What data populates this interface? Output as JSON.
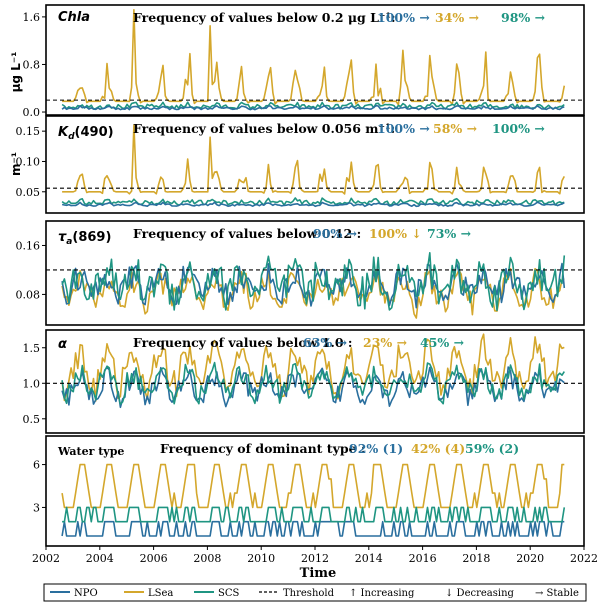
{
  "colors": {
    "NPO": "#2a6f9e",
    "LSea": "#d4a72c",
    "SCS": "#1f9582",
    "threshold": "#000000"
  },
  "figure": {
    "xlabel": "Time",
    "x_ticks": [
      "2002",
      "2004",
      "2006",
      "2008",
      "2010",
      "2012",
      "2014",
      "2016",
      "2018",
      "2020",
      "2022"
    ]
  },
  "legend": [
    {
      "key": "npo",
      "label": "NPO",
      "kind": "line",
      "color": "#2a6f9e"
    },
    {
      "key": "lsea",
      "label": "LSea",
      "kind": "line",
      "color": "#d4a72c"
    },
    {
      "key": "scs",
      "label": "SCS",
      "kind": "line",
      "color": "#1f9582"
    },
    {
      "key": "threshold",
      "label": "Threshold",
      "kind": "dash",
      "color": "#000000"
    },
    {
      "key": "increasing",
      "label": "↑ Increasing",
      "kind": "text"
    },
    {
      "key": "decreasing",
      "label": "↓ Decreasing",
      "kind": "text"
    },
    {
      "key": "stable",
      "label": "→ Stable",
      "kind": "text"
    }
  ],
  "chart_data": [
    {
      "type": "line",
      "panel": "Chla",
      "name_text": "Chla",
      "ylabel": "μg L⁻¹",
      "ylim": [
        -0.05,
        1.8
      ],
      "yticks": [
        "0.0",
        "0.8",
        "1.6"
      ],
      "ytick_values": [
        0.0,
        0.8,
        1.6
      ],
      "threshold": 0.2,
      "freq_title": "Frequency of values below 0.2 μg L⁻¹:",
      "freqs": [
        "100% →",
        "34% →",
        "98% →"
      ],
      "series": [
        {
          "name": "NPO",
          "base": 0.06,
          "amp": 0.03,
          "noise": 0.02
        },
        {
          "name": "LSea",
          "base": 0.18,
          "amp": 0.55,
          "noise": 0.25,
          "peaks": [
            1.72,
            1.45,
            1.15,
            1.0,
            0.95,
            0.9
          ]
        },
        {
          "name": "SCS",
          "base": 0.09,
          "amp": 0.04,
          "noise": 0.04
        }
      ]
    },
    {
      "type": "line",
      "panel": "Kd490",
      "name_text": "K",
      "ylabel": "m⁻¹",
      "ylim": [
        0.015,
        0.175
      ],
      "yticks": [
        "0.05",
        "0.10",
        "0.15"
      ],
      "ytick_values": [
        0.05,
        0.1,
        0.15
      ],
      "threshold": 0.056,
      "freq_title": "Frequency of values below 0.056 m⁻¹:",
      "freqs": [
        "100% →",
        "58% →",
        "100% →"
      ],
      "series": [
        {
          "name": "NPO",
          "base": 0.028,
          "amp": 0.003,
          "noise": 0.002
        },
        {
          "name": "LSea",
          "base": 0.05,
          "amp": 0.035,
          "noise": 0.015,
          "peaks": [
            0.16,
            0.14,
            0.12
          ]
        },
        {
          "name": "SCS",
          "base": 0.032,
          "amp": 0.004,
          "noise": 0.004
        }
      ]
    },
    {
      "type": "line",
      "panel": "tau869",
      "name_text": "τ",
      "ylabel": "",
      "ylim": [
        0.03,
        0.2
      ],
      "yticks": [
        "0.08",
        "0.16"
      ],
      "ytick_values": [
        0.08,
        0.16
      ],
      "threshold": 0.12,
      "freq_title": "Frequency of values below 0.12 :",
      "freqs": [
        "90% →",
        "100% ↓",
        "73% →"
      ],
      "series": [
        {
          "name": "NPO",
          "base": 0.095,
          "amp": 0.015,
          "noise": 0.022
        },
        {
          "name": "LSea",
          "base": 0.085,
          "amp": 0.02,
          "noise": 0.02
        },
        {
          "name": "SCS",
          "base": 0.1,
          "amp": 0.02,
          "noise": 0.03
        }
      ]
    },
    {
      "type": "line",
      "panel": "alpha",
      "name_text": "α",
      "ylabel": "",
      "ylim": [
        0.3,
        1.75
      ],
      "yticks": [
        "0.5",
        "1.0",
        "1.5"
      ],
      "ytick_values": [
        0.5,
        1.0,
        1.5
      ],
      "threshold": 1.0,
      "freq_title": "Frequency of values below 1.0 :",
      "freqs": [
        "63% →",
        "23% →",
        "45% →"
      ],
      "series": [
        {
          "name": "NPO",
          "base": 0.95,
          "amp": 0.15,
          "noise": 0.15
        },
        {
          "name": "LSea",
          "base": 1.2,
          "amp": 0.25,
          "noise": 0.18
        },
        {
          "name": "SCS",
          "base": 1.0,
          "amp": 0.15,
          "noise": 0.15
        }
      ]
    },
    {
      "type": "line",
      "panel": "watertype",
      "name_text": "Water type",
      "ylabel": "",
      "ylim": [
        0.3,
        8.0
      ],
      "yticks": [
        "3",
        "6"
      ],
      "ytick_values": [
        3,
        6
      ],
      "threshold": null,
      "freq_title": "Frequency of dominant type :",
      "freqs": [
        "92% (1)",
        "42% (4)",
        "59% (2)"
      ],
      "series": [
        {
          "name": "NPO",
          "base": 1,
          "levels": [
            1,
            2
          ]
        },
        {
          "name": "LSea",
          "base": 3,
          "levels": [
            3,
            4,
            5,
            6
          ]
        },
        {
          "name": "SCS",
          "base": 2,
          "levels": [
            2,
            3
          ]
        }
      ]
    }
  ]
}
